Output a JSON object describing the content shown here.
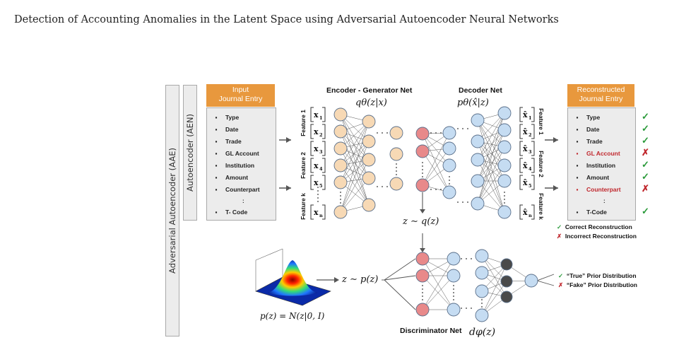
{
  "title": "Detection of Accounting Anomalies in the Latent Space using Adversarial Autoencoder Neural Networks",
  "aae_label": "Adversarial Autoencoder (AAE)",
  "aen_label": "Autoencoder (AEN)",
  "input_box": {
    "header": "Input\nJournal Entry",
    "items": [
      "Type",
      "Date",
      "Trade",
      "GL Account",
      "Institution",
      "Amount",
      "Counterpart",
      ":",
      "T- Code"
    ]
  },
  "output_box": {
    "header": "Reconstructed\nJournal Entry",
    "items": [
      {
        "label": "Type",
        "correct": true
      },
      {
        "label": "Date",
        "correct": true
      },
      {
        "label": "Trade",
        "correct": true
      },
      {
        "label": "GL Account",
        "correct": false
      },
      {
        "label": "Institution",
        "correct": true
      },
      {
        "label": "Amount",
        "correct": true
      },
      {
        "label": "Counterpart",
        "correct": false
      },
      {
        "label": ":",
        "correct": null
      },
      {
        "label": "T-Code",
        "correct": true
      }
    ]
  },
  "encoder_title": "Encoder - Generator Net",
  "encoder_formula": "qθ(z|x)",
  "decoder_title": "Decoder Net",
  "decoder_formula": "pθ(x̂|z)",
  "features_left": [
    "Feature 1",
    "Feature 2",
    "Feature k"
  ],
  "features_right": [
    "Feature 1",
    "Feature 2",
    "Feature k"
  ],
  "inputs": [
    "x1",
    "x2",
    "x3",
    "x4",
    "x5",
    "xn"
  ],
  "outputs": [
    "x̂1",
    "x̂2",
    "x̂3",
    "x̂4",
    "x̂5",
    "x̂n"
  ],
  "z_q": "z ∼ q(z)",
  "z_p": "z ∼ p(z)",
  "prior_formula": "p(z) = N(z|0, I)",
  "discriminator_title": "Discriminator Net",
  "discriminator_formula": "dφ(z)",
  "legend_reconstruction": {
    "correct": "Correct Reconstruction",
    "incorrect": "Incorrect Reconstruction"
  },
  "legend_prior": {
    "true": "“True” Prior Distribution",
    "fake": "“Fake” Prior Distribution"
  },
  "check_mark": "✓",
  "cross_mark": "✗",
  "colors": {
    "orange": "#e8983d",
    "peach": "#f7d9b5",
    "red_node": "#e8898a",
    "blue_node": "#c5dcf2",
    "check": "#2a9a3a",
    "cross": "#c0272d"
  }
}
